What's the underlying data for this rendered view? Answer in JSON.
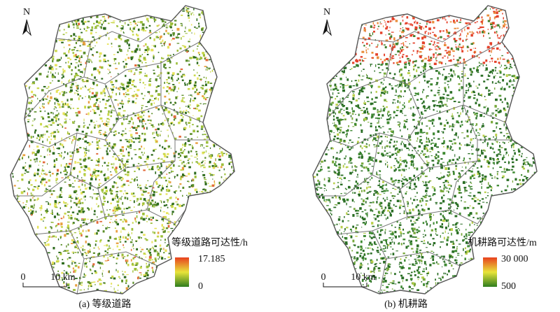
{
  "maps": [
    {
      "north": "N",
      "legend": {
        "title": "等级道路可达性/h",
        "max": 17.185,
        "min": 0
      },
      "scale": {
        "start": "0",
        "end": "10 km"
      },
      "caption": "(a) 等级道路"
    },
    {
      "north": "N",
      "legend": {
        "title": "机耕路可达性/m",
        "max": {
          "value": 30000,
          "label": "30 000"
        },
        "min": 500
      },
      "scale": {
        "start": "0",
        "end": "10 km"
      },
      "caption": "(b) 机耕路"
    }
  ]
}
